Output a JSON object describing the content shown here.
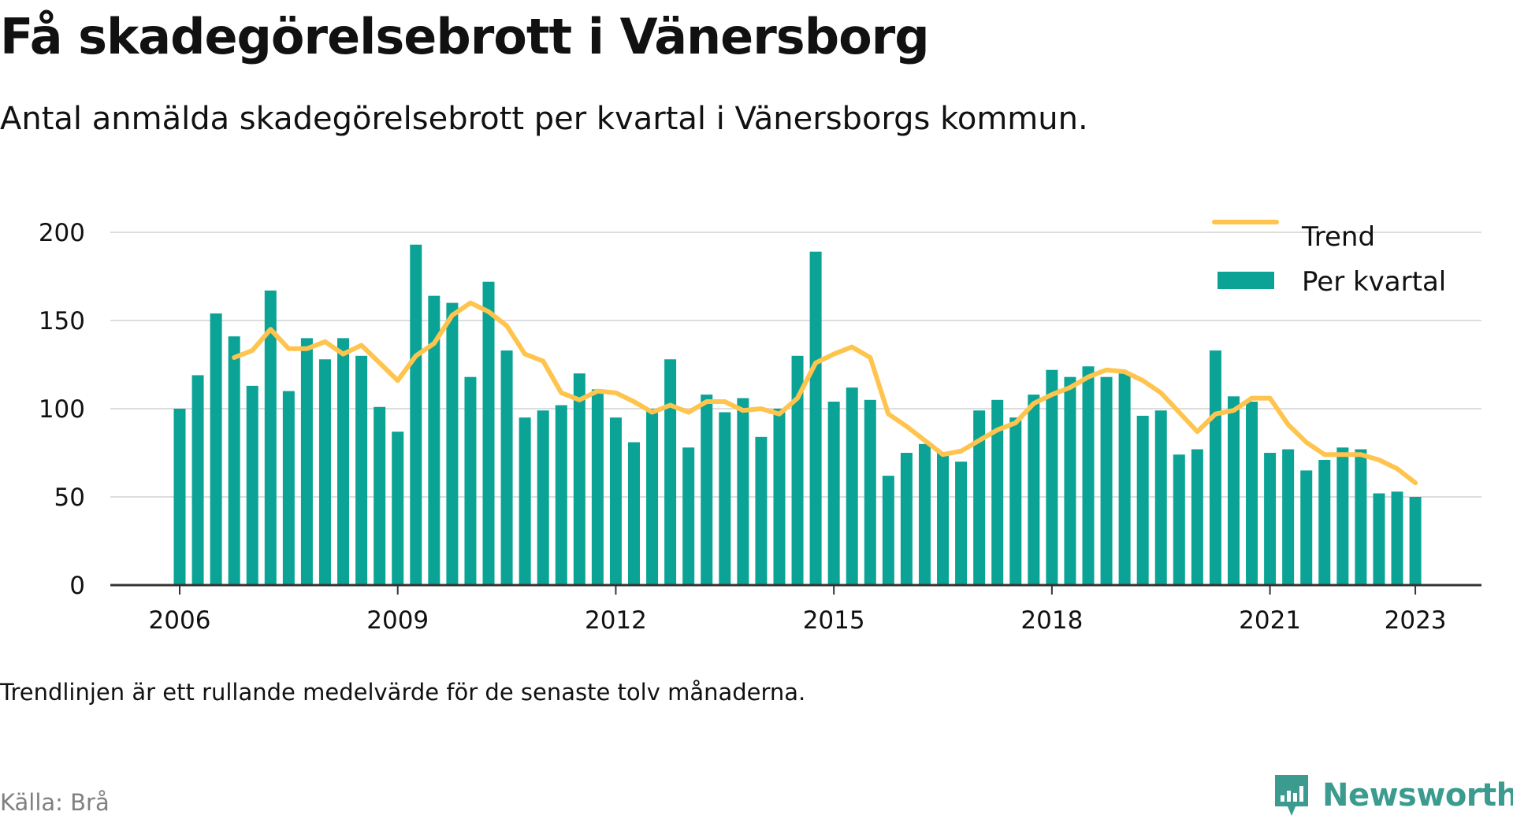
{
  "title": "Få skadegörelsebrott i Vänersborg",
  "subtitle": "Antal anmälda skadegörelsebrott per kvartal i Vänersborgs kommun.",
  "note": "Trendlinjen är ett rullande medelvärde för de senaste tolv månaderna.",
  "source": "Källa: Brå",
  "brand": "Newsworthy",
  "brand_icon": "newsworthy-logo-icon",
  "colors": {
    "bars": "#0aa396",
    "trend": "#ffc44d",
    "axis": "#333333",
    "grid": "#dddddd",
    "brand": "#3a9b8e"
  },
  "chart_data": {
    "type": "bar",
    "title": "Få skadegörelsebrott i Vänersborg",
    "xlabel": "",
    "ylabel": "",
    "ylim": [
      0,
      200
    ],
    "yticks": [
      0,
      50,
      100,
      150,
      200
    ],
    "xticks": [
      "2006",
      "2009",
      "2012",
      "2015",
      "2018",
      "2021",
      "2023"
    ],
    "grid": true,
    "legend_position": "top-right",
    "legend": [
      "Trend",
      "Per kvartal"
    ],
    "categories": [
      "2006 Q1",
      "2006 Q2",
      "2006 Q3",
      "2006 Q4",
      "2007 Q1",
      "2007 Q2",
      "2007 Q3",
      "2007 Q4",
      "2008 Q1",
      "2008 Q2",
      "2008 Q3",
      "2008 Q4",
      "2009 Q1",
      "2009 Q2",
      "2009 Q3",
      "2009 Q4",
      "2010 Q1",
      "2010 Q2",
      "2010 Q3",
      "2010 Q4",
      "2011 Q1",
      "2011 Q2",
      "2011 Q3",
      "2011 Q4",
      "2012 Q1",
      "2012 Q2",
      "2012 Q3",
      "2012 Q4",
      "2013 Q1",
      "2013 Q2",
      "2013 Q3",
      "2013 Q4",
      "2014 Q1",
      "2014 Q2",
      "2014 Q3",
      "2014 Q4",
      "2015 Q1",
      "2015 Q2",
      "2015 Q3",
      "2015 Q4",
      "2016 Q1",
      "2016 Q2",
      "2016 Q3",
      "2016 Q4",
      "2017 Q1",
      "2017 Q2",
      "2017 Q3",
      "2017 Q4",
      "2018 Q1",
      "2018 Q2",
      "2018 Q3",
      "2018 Q4",
      "2019 Q1",
      "2019 Q2",
      "2019 Q3",
      "2019 Q4",
      "2020 Q1",
      "2020 Q2",
      "2020 Q3",
      "2020 Q4",
      "2021 Q1",
      "2021 Q2",
      "2021 Q3",
      "2021 Q4",
      "2022 Q1",
      "2022 Q2",
      "2022 Q3",
      "2022 Q4",
      "2023 Q1"
    ],
    "series": [
      {
        "name": "Per kvartal",
        "type": "bar",
        "values": [
          100,
          119,
          154,
          141,
          113,
          167,
          110,
          140,
          128,
          140,
          130,
          101,
          87,
          193,
          164,
          160,
          118,
          172,
          133,
          95,
          99,
          102,
          120,
          111,
          95,
          81,
          100,
          128,
          78,
          108,
          98,
          106,
          84,
          100,
          130,
          189,
          104,
          112,
          105,
          62,
          75,
          80,
          75,
          70,
          99,
          105,
          95,
          108,
          122,
          118,
          124,
          118,
          120,
          96,
          99,
          74,
          77,
          133,
          107,
          104,
          75,
          77,
          65,
          71,
          78,
          77,
          52,
          53,
          50
        ],
        "color": "#0aa396"
      },
      {
        "name": "Trend",
        "type": "line",
        "values": [
          null,
          null,
          null,
          129,
          133,
          145,
          134,
          134,
          138,
          131,
          136,
          126,
          116,
          130,
          137,
          153,
          160,
          155,
          147,
          131,
          127,
          109,
          105,
          110,
          109,
          104,
          98,
          102,
          98,
          104,
          104,
          99,
          100,
          97,
          106,
          126,
          131,
          135,
          129,
          97,
          90,
          82,
          74,
          76,
          82,
          88,
          92,
          103,
          108,
          112,
          118,
          122,
          121,
          116,
          109,
          98,
          87,
          97,
          99,
          106,
          106,
          91,
          81,
          74,
          74,
          74,
          71,
          66,
          58
        ],
        "color": "#ffc44d"
      }
    ]
  }
}
